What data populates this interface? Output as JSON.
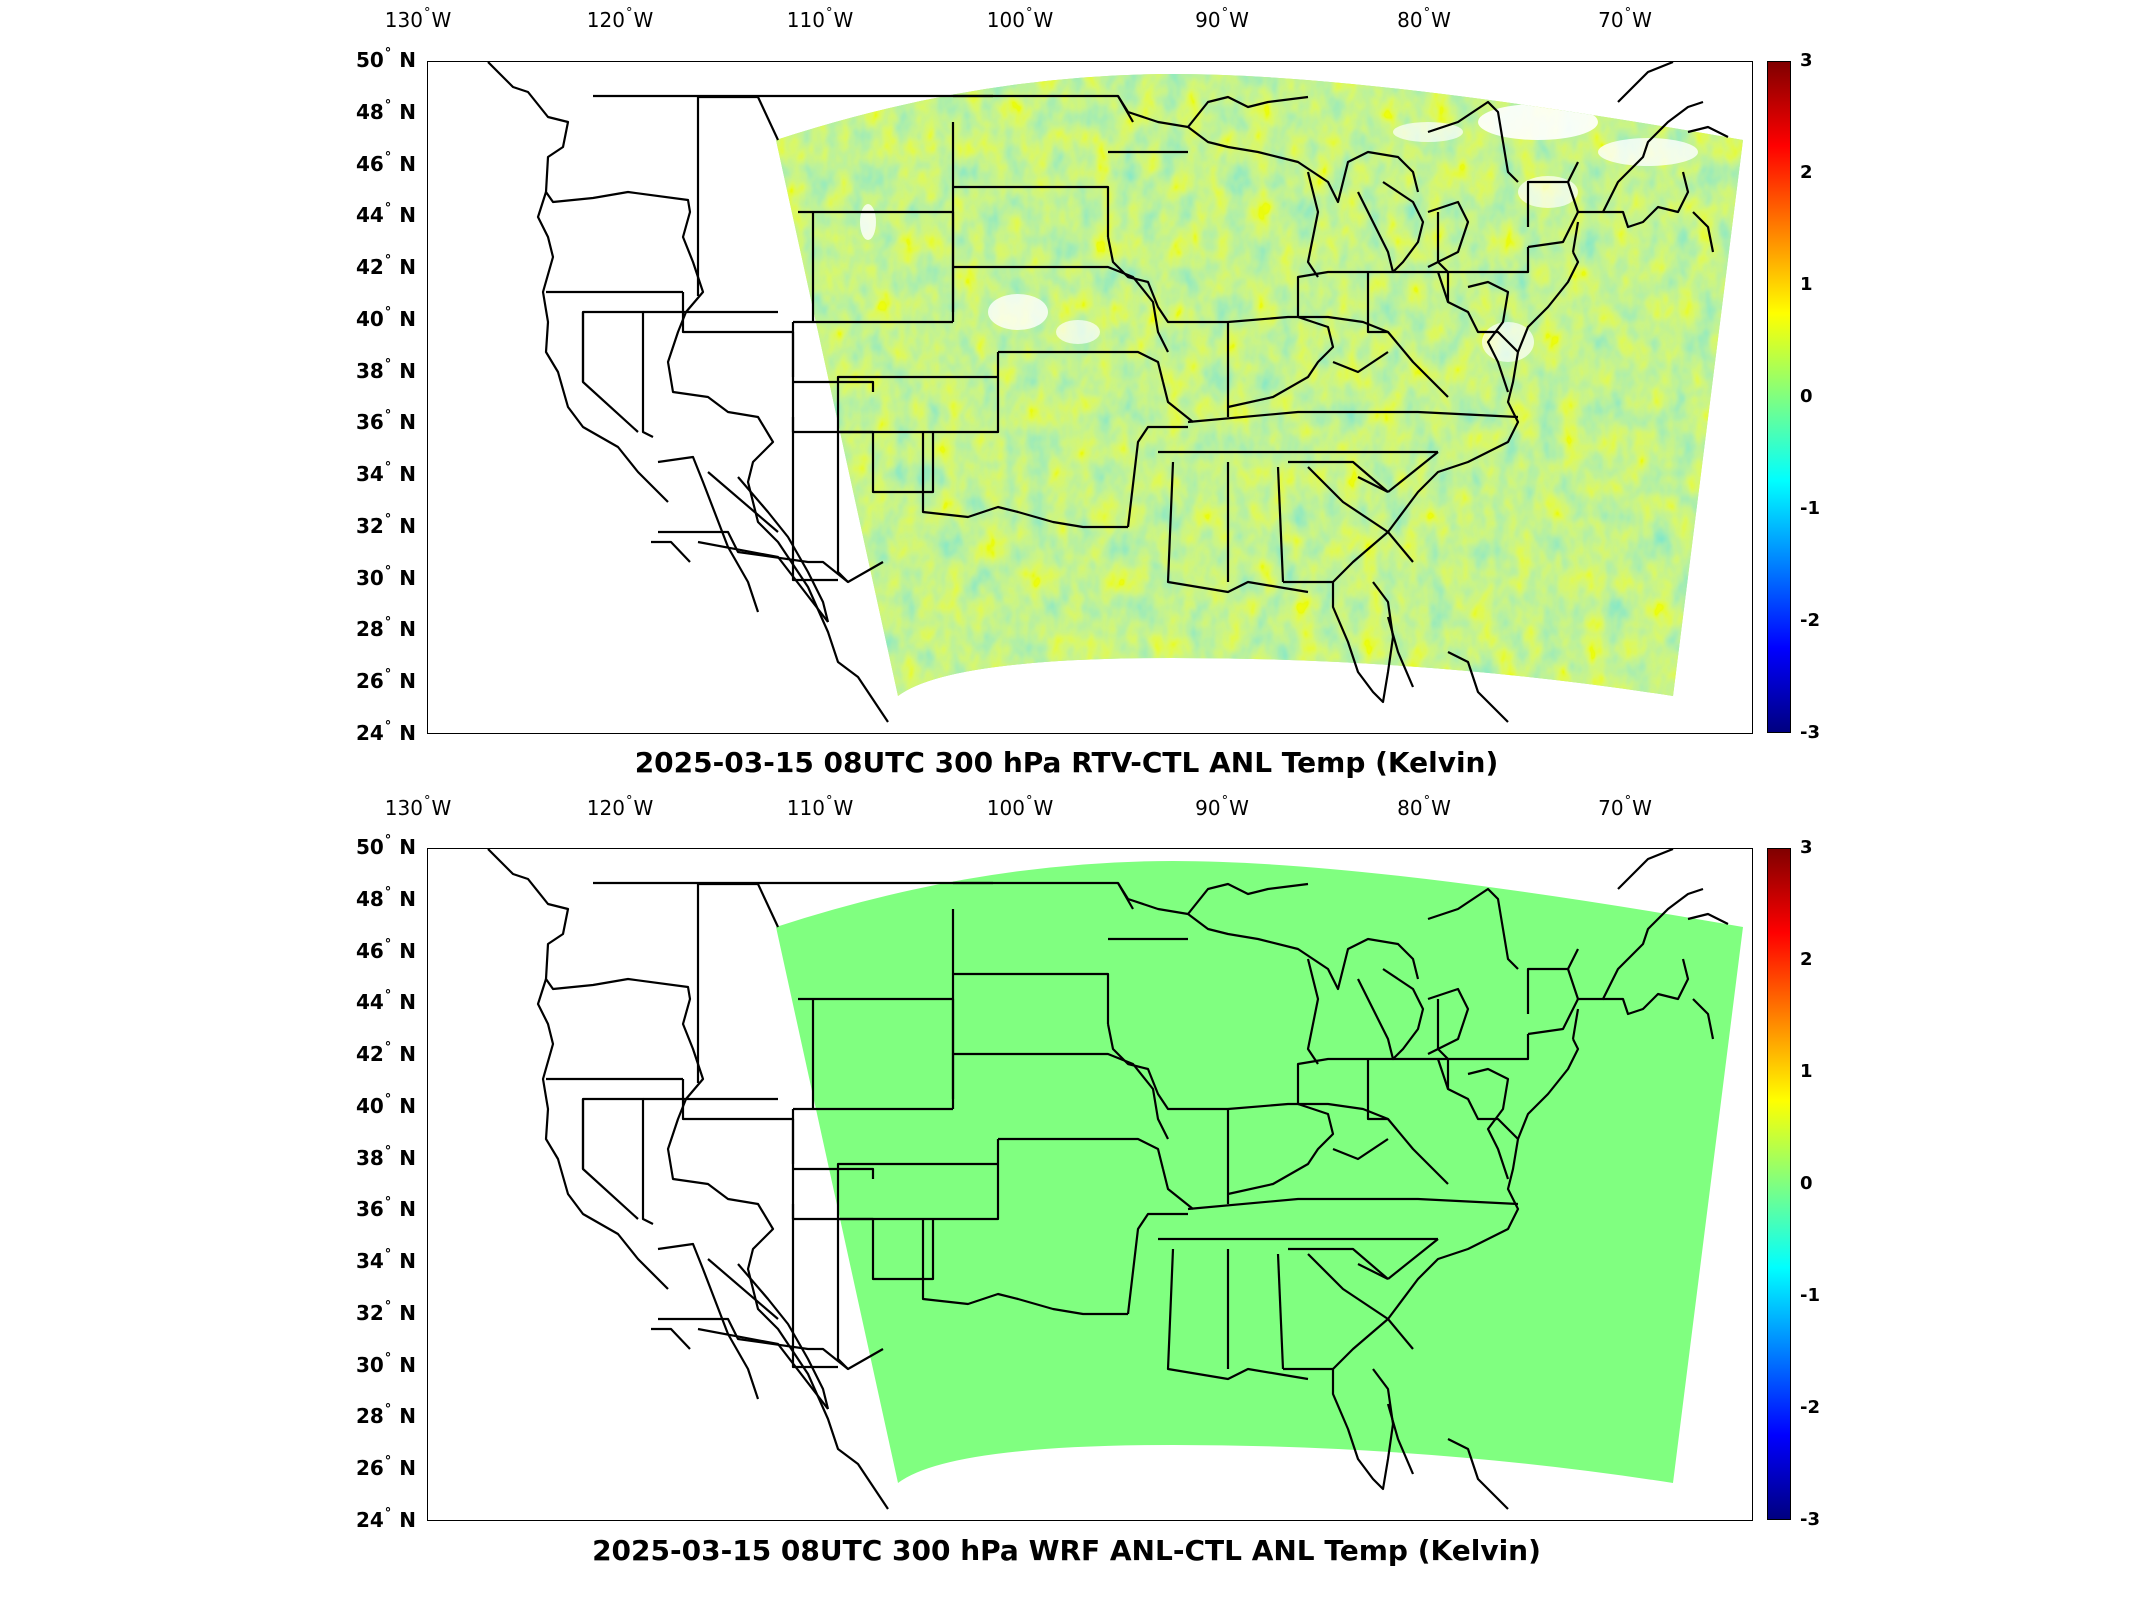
{
  "panels": [
    {
      "title": "2025-03-15 08UTC 300 hPa RTV-CTL ANL Temp (Kelvin)",
      "field_style": "noisy"
    },
    {
      "title": "2025-03-15 08UTC 300 hPa WRF ANL-CTL ANL Temp (Kelvin)",
      "field_style": "uniform"
    }
  ],
  "lon_ticks": [
    "130",
    "120",
    "110",
    "100",
    "90",
    "80",
    "70"
  ],
  "lon_suffix": "W",
  "lat_ticks": [
    "50",
    "48",
    "46",
    "44",
    "42",
    "40",
    "38",
    "36",
    "34",
    "32",
    "30",
    "28",
    "26",
    "24"
  ],
  "lat_suffix": "N",
  "colorbar": {
    "ticks": [
      "3",
      "2",
      "1",
      "0",
      "-1",
      "-2",
      "-3"
    ],
    "range": [
      -3,
      3
    ],
    "colormap": "jet"
  },
  "colors": {
    "field_uniform": "#80ff80",
    "field_noisy_base": "#a8f060"
  }
}
